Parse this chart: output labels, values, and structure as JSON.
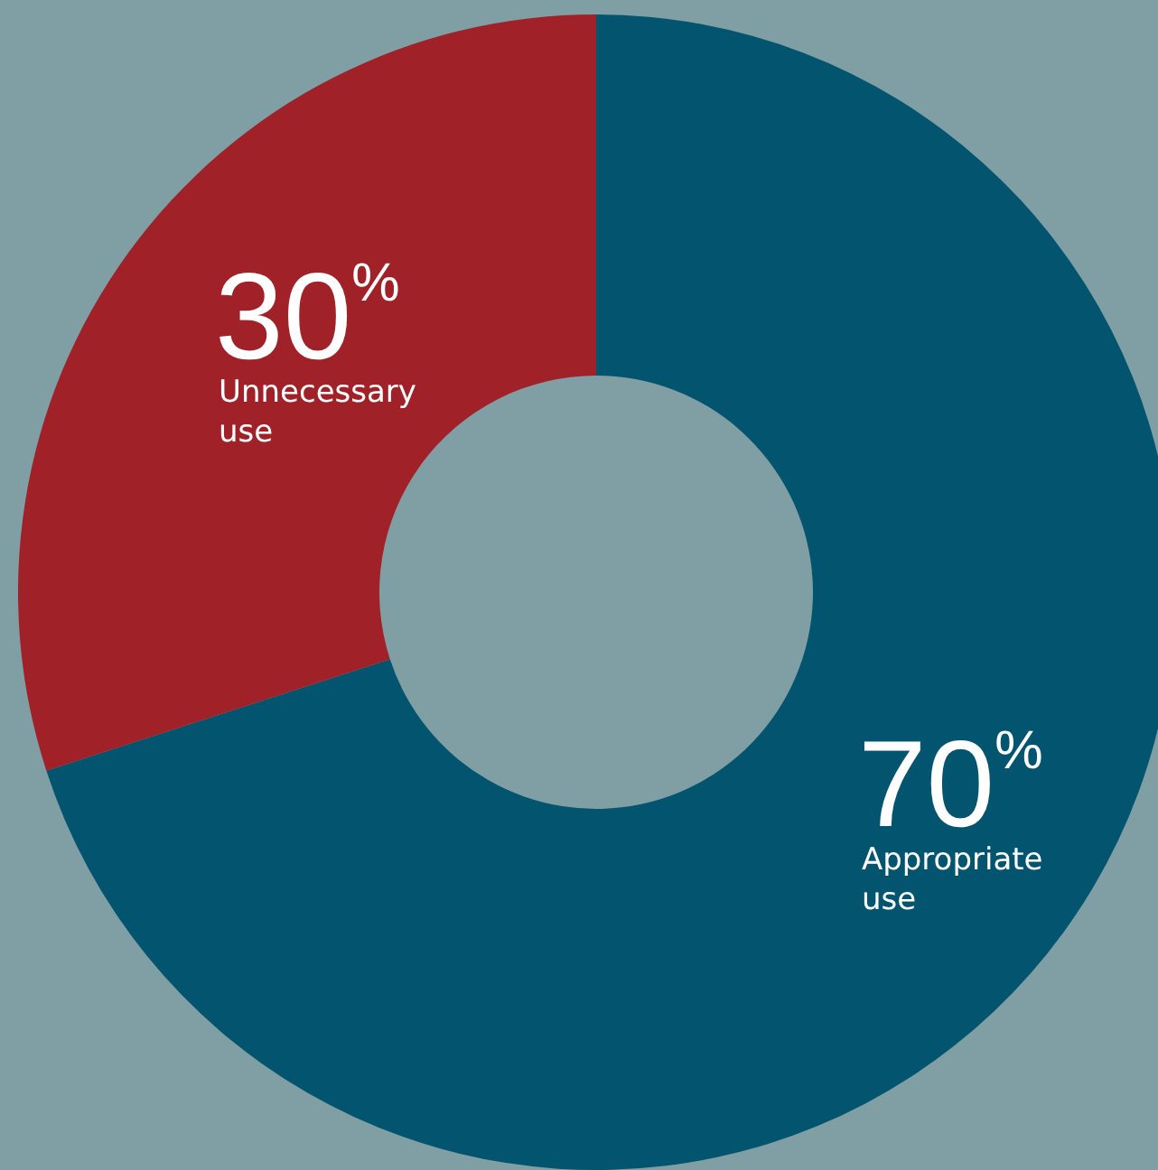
{
  "chart_data": {
    "type": "donut",
    "categories": [
      "Appropriate use",
      "Unnecessary use"
    ],
    "values": [
      70,
      30
    ],
    "colors": [
      "#03546f",
      "#a02128"
    ],
    "value_labels": [
      "70%",
      "30%"
    ],
    "legend": false
  }
}
